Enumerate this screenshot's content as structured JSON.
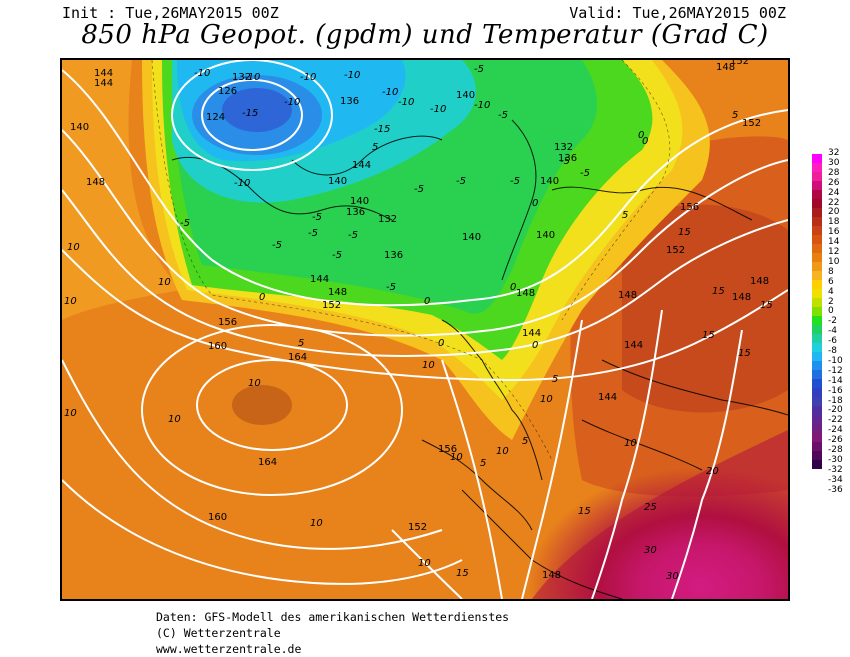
{
  "header": {
    "init": "Init : Tue,26MAY2015 00Z",
    "valid": "Valid: Tue,26MAY2015 00Z",
    "title": "850 hPa Geopot. (gpdm) und Temperatur (Grad C)"
  },
  "footer": {
    "line1": "Daten: GFS-Modell des amerikanischen Wetterdienstes",
    "line2": "(C) Wetterzentrale",
    "line3": "www.wetterzentrale.de"
  },
  "legend": {
    "labels": [
      "32",
      "30",
      "28",
      "26",
      "24",
      "22",
      "20",
      "18",
      "16",
      "14",
      "12",
      "10",
      "8",
      "6",
      "4",
      "2",
      "0",
      "-2",
      "-4",
      "-6",
      "-8",
      "-10",
      "-12",
      "-14",
      "-16",
      "-18",
      "-20",
      "-22",
      "-24",
      "-26",
      "-28",
      "-30",
      "-32",
      "-34",
      "-36"
    ],
    "colors": [
      "#ff00ff",
      "#ff1fbf",
      "#f0209a",
      "#d0107a",
      "#b00845",
      "#a00a28",
      "#a81e1e",
      "#b83018",
      "#c84418",
      "#d85410",
      "#e06a10",
      "#e88010",
      "#f09818",
      "#f8b420",
      "#ffd000",
      "#f0e000",
      "#c0e000",
      "#80e000",
      "#20e020",
      "#20d060",
      "#20d0a0",
      "#20d0e0",
      "#20b8f0",
      "#2090f0",
      "#2070e0",
      "#2050d0",
      "#3040c0",
      "#4040b0",
      "#5030a0",
      "#602890",
      "#702080",
      "#801878",
      "#6a1068",
      "#500858",
      "#300048"
    ]
  },
  "map": {
    "temp_labels": [
      "-10",
      "-10",
      "-10",
      "-10",
      "-15",
      "-10",
      "-10",
      "-10",
      "-15",
      "-10",
      "-5",
      "-5",
      "-10",
      "-10",
      "-5",
      "-5",
      "-5",
      "-5",
      "-5",
      "-5",
      "-5",
      "-5",
      "-5",
      "-5",
      "-5",
      "-5",
      "0",
      "0",
      "0",
      "0",
      "0",
      "0",
      "0",
      "0",
      "5",
      "5",
      "5",
      "5",
      "5",
      "5",
      "5",
      "10",
      "10",
      "10",
      "10",
      "10",
      "10",
      "10",
      "10",
      "10",
      "10",
      "10",
      "10",
      "10",
      "15",
      "15",
      "15",
      "15",
      "15",
      "15",
      "15",
      "20",
      "25",
      "30",
      "30"
    ],
    "geo_labels": [
      "144",
      "144",
      "132",
      "126",
      "124",
      "136",
      "140",
      "132",
      "136",
      "140",
      "140",
      "136",
      "140",
      "144",
      "140",
      "132",
      "136",
      "144",
      "148",
      "152",
      "156",
      "160",
      "164",
      "164",
      "160",
      "156",
      "152",
      "148",
      "148",
      "148",
      "144",
      "144",
      "152",
      "148",
      "148",
      "152",
      "156",
      "152",
      "148",
      "140",
      "140",
      "144",
      "148"
    ]
  }
}
